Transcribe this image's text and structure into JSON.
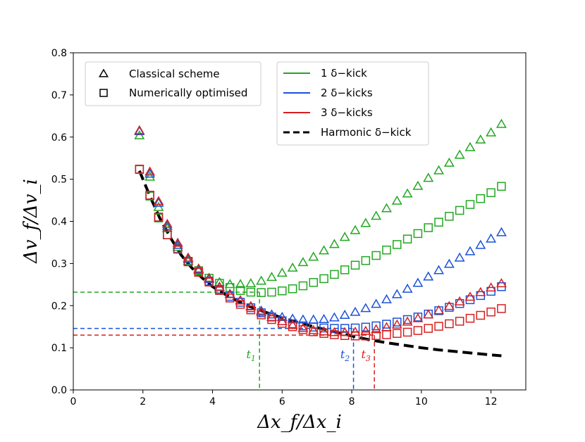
{
  "chart_data": {
    "type": "scatter",
    "xlabel": "Δx_f/Δx_i",
    "ylabel": "Δv_f/Δv_i",
    "xlim": [
      0,
      13
    ],
    "ylim": [
      0.0,
      0.8
    ],
    "xticks": [
      "0",
      "2",
      "4",
      "6",
      "8",
      "10",
      "12"
    ],
    "yticks": [
      "0.0",
      "0.1",
      "0.2",
      "0.3",
      "0.4",
      "0.5",
      "0.6",
      "0.7",
      "0.8"
    ],
    "grid": false,
    "marker_legend": [
      {
        "marker": "triangle",
        "label": "Classical scheme"
      },
      {
        "marker": "square",
        "label": "Numerically optimised"
      }
    ],
    "line_legend": [
      {
        "color": "#22a722",
        "label": "1 δ−kick",
        "style": "solid"
      },
      {
        "color": "#1a52d9",
        "label": "2 δ−kicks",
        "style": "solid"
      },
      {
        "color": "#d62020",
        "label": "3 δ−kicks",
        "style": "solid"
      },
      {
        "color": "#000000",
        "label": "Harmonic δ−kick",
        "style": "dashed"
      }
    ],
    "x": [
      1.9,
      2.2,
      2.45,
      2.7,
      3.0,
      3.3,
      3.6,
      3.9,
      4.2,
      4.5,
      4.8,
      5.1,
      5.4,
      5.7,
      6.0,
      6.3,
      6.6,
      6.9,
      7.2,
      7.5,
      7.8,
      8.1,
      8.4,
      8.7,
      9.0,
      9.3,
      9.6,
      9.9,
      10.2,
      10.5,
      10.8,
      11.1,
      11.4,
      11.7,
      12.0,
      12.3
    ],
    "series": [
      {
        "name": "1 δ−kick classical",
        "color": "#22a722",
        "marker": "triangle",
        "values": [
          0.603,
          0.505,
          0.433,
          0.383,
          0.338,
          0.305,
          0.283,
          0.265,
          0.255,
          0.25,
          0.25,
          0.252,
          0.258,
          0.267,
          0.277,
          0.289,
          0.302,
          0.315,
          0.33,
          0.345,
          0.362,
          0.378,
          0.395,
          0.412,
          0.43,
          0.448,
          0.465,
          0.483,
          0.502,
          0.52,
          0.538,
          0.557,
          0.575,
          0.593,
          0.61,
          0.63
        ]
      },
      {
        "name": "1 δ−kick optimised",
        "color": "#22a722",
        "marker": "square",
        "values": [
          0.523,
          0.46,
          0.408,
          0.368,
          0.335,
          0.305,
          0.283,
          0.265,
          0.253,
          0.243,
          0.236,
          0.232,
          0.231,
          0.232,
          0.235,
          0.24,
          0.247,
          0.255,
          0.264,
          0.274,
          0.285,
          0.296,
          0.307,
          0.319,
          0.332,
          0.345,
          0.358,
          0.371,
          0.385,
          0.398,
          0.412,
          0.426,
          0.44,
          0.454,
          0.468,
          0.483
        ]
      },
      {
        "name": "2 δ−kicks classical",
        "color": "#1a52d9",
        "marker": "triangle",
        "values": [
          0.613,
          0.512,
          0.443,
          0.388,
          0.343,
          0.31,
          0.285,
          0.262,
          0.243,
          0.227,
          0.212,
          0.198,
          0.187,
          0.178,
          0.172,
          0.168,
          0.166,
          0.166,
          0.167,
          0.171,
          0.177,
          0.184,
          0.193,
          0.203,
          0.214,
          0.226,
          0.239,
          0.253,
          0.268,
          0.283,
          0.298,
          0.313,
          0.328,
          0.343,
          0.358,
          0.373
        ]
      },
      {
        "name": "2 δ−kicks optimised",
        "color": "#1a52d9",
        "marker": "square",
        "values": [
          0.524,
          0.462,
          0.41,
          0.368,
          0.335,
          0.305,
          0.28,
          0.258,
          0.238,
          0.222,
          0.208,
          0.195,
          0.183,
          0.173,
          0.164,
          0.157,
          0.152,
          0.149,
          0.147,
          0.146,
          0.146,
          0.147,
          0.149,
          0.152,
          0.156,
          0.161,
          0.167,
          0.173,
          0.18,
          0.188,
          0.196,
          0.205,
          0.214,
          0.224,
          0.234,
          0.245
        ]
      },
      {
        "name": "3 δ−kicks classical",
        "color": "#d62020",
        "marker": "triangle",
        "values": [
          0.615,
          0.517,
          0.447,
          0.393,
          0.348,
          0.313,
          0.287,
          0.264,
          0.244,
          0.226,
          0.211,
          0.197,
          0.184,
          0.172,
          0.162,
          0.153,
          0.146,
          0.141,
          0.138,
          0.136,
          0.136,
          0.137,
          0.139,
          0.143,
          0.148,
          0.154,
          0.161,
          0.169,
          0.178,
          0.188,
          0.198,
          0.209,
          0.22,
          0.231,
          0.242,
          0.252
        ]
      },
      {
        "name": "3 δ−kicks optimised",
        "color": "#d62020",
        "marker": "square",
        "values": [
          0.524,
          0.462,
          0.41,
          0.368,
          0.334,
          0.304,
          0.279,
          0.256,
          0.236,
          0.218,
          0.203,
          0.19,
          0.178,
          0.167,
          0.158,
          0.15,
          0.143,
          0.138,
          0.134,
          0.131,
          0.129,
          0.128,
          0.128,
          0.129,
          0.131,
          0.134,
          0.137,
          0.141,
          0.146,
          0.151,
          0.157,
          0.163,
          0.17,
          0.177,
          0.185,
          0.193
        ]
      }
    ],
    "harmonic_curve": {
      "name": "Harmonic δ−kick",
      "color": "#000000",
      "x": [
        1.9,
        2.2,
        2.5,
        2.8,
        3.1,
        3.4,
        3.7,
        4.0,
        4.5,
        5.0,
        5.5,
        6.0,
        6.5,
        7.0,
        7.5,
        8.0,
        8.5,
        9.0,
        9.5,
        10.0,
        10.5,
        11.0,
        11.5,
        12.0,
        12.3
      ],
      "y": [
        0.52,
        0.46,
        0.405,
        0.36,
        0.32,
        0.29,
        0.266,
        0.245,
        0.22,
        0.2,
        0.185,
        0.171,
        0.159,
        0.148,
        0.138,
        0.128,
        0.119,
        0.112,
        0.106,
        0.1,
        0.095,
        0.091,
        0.087,
        0.083,
        0.081
      ]
    },
    "reference_lines": [
      {
        "label": "t_1",
        "sub": "1",
        "x": 5.35,
        "y": 0.232,
        "color": "#22a722"
      },
      {
        "label": "t_2",
        "sub": "2",
        "x": 8.05,
        "y": 0.146,
        "color": "#1a52d9"
      },
      {
        "label": "t_3",
        "sub": "3",
        "x": 8.65,
        "y": 0.13,
        "color": "#d62020"
      }
    ]
  }
}
